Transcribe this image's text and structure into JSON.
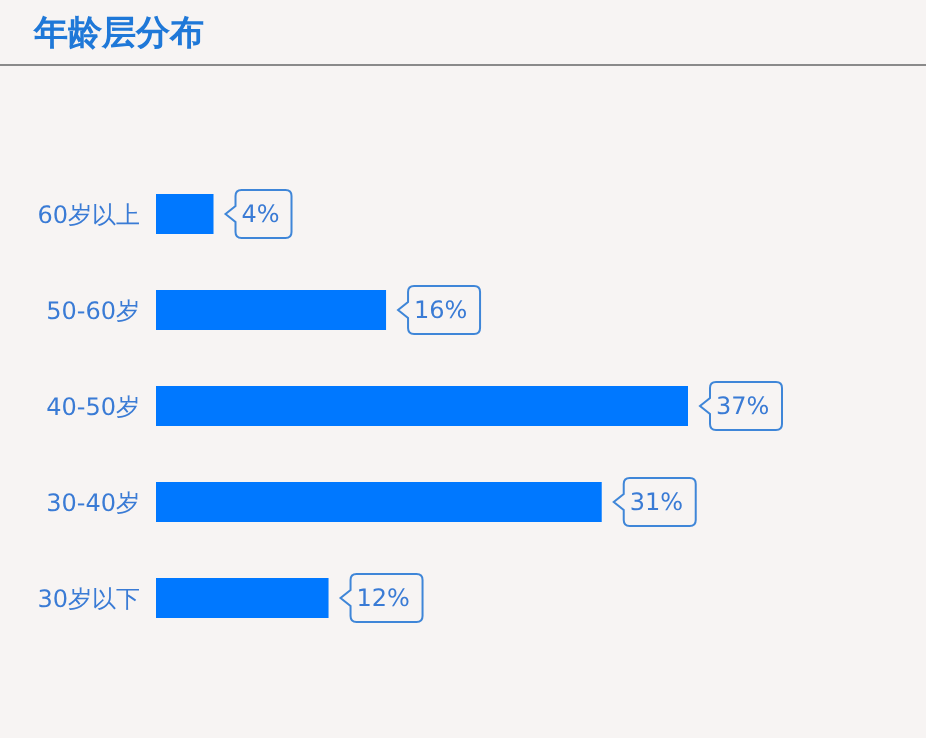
{
  "chart_data": {
    "type": "bar",
    "orientation": "horizontal",
    "title": "年龄层分布",
    "categories": [
      "60岁以上",
      "50-60岁",
      "40-50岁",
      "30-40岁",
      "30岁以下"
    ],
    "values": [
      4,
      16,
      37,
      31,
      12
    ],
    "value_labels": [
      "4%",
      "16%",
      "37%",
      "31%",
      "12%"
    ],
    "color": "#0078ff"
  }
}
